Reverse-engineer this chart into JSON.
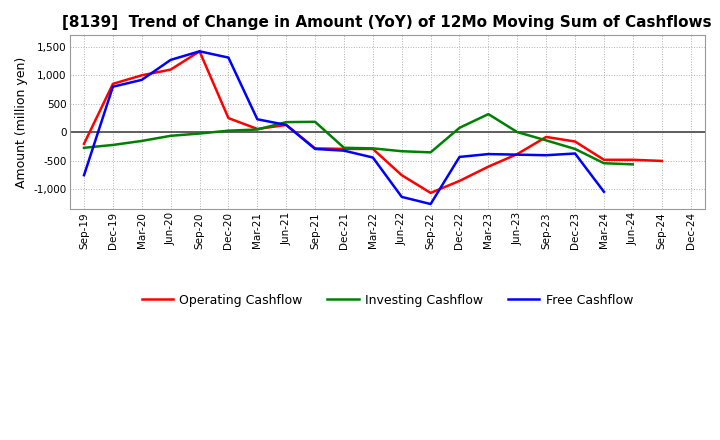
{
  "title": "[8139]  Trend of Change in Amount (YoY) of 12Mo Moving Sum of Cashflows",
  "ylabel": "Amount (million yen)",
  "x_labels": [
    "Sep-19",
    "Dec-19",
    "Mar-20",
    "Jun-20",
    "Sep-20",
    "Dec-20",
    "Mar-21",
    "Jun-21",
    "Sep-21",
    "Dec-21",
    "Mar-22",
    "Jun-22",
    "Sep-22",
    "Dec-22",
    "Mar-23",
    "Jun-23",
    "Sep-23",
    "Dec-23",
    "Mar-24",
    "Jun-24",
    "Sep-24",
    "Dec-24"
  ],
  "operating": [
    -200,
    850,
    1000,
    1100,
    1420,
    250,
    60,
    130,
    -280,
    -290,
    -290,
    -750,
    -1060,
    -850,
    -600,
    -380,
    -80,
    -160,
    -480,
    -480,
    -500,
    null
  ],
  "investing": [
    -270,
    -220,
    -150,
    -60,
    -20,
    30,
    50,
    180,
    185,
    -270,
    -280,
    -330,
    -350,
    80,
    320,
    5,
    -140,
    -290,
    -540,
    -560,
    null,
    null
  ],
  "free": [
    -750,
    800,
    920,
    1270,
    1420,
    1310,
    230,
    130,
    -290,
    -320,
    -440,
    -1130,
    -1255,
    -430,
    -380,
    -390,
    -400,
    -370,
    -1040,
    null,
    null,
    null
  ],
  "ylim": [
    -1350,
    1700
  ],
  "yticks": [
    -1000,
    -500,
    0,
    500,
    1000,
    1500
  ],
  "operating_color": "#ff0000",
  "investing_color": "#008000",
  "free_color": "#0000ff",
  "bg_color": "#ffffff",
  "plot_bg_color": "#ffffff",
  "grid_color": "#b0b0b0",
  "zero_line_color": "#444444",
  "title_fontsize": 11,
  "axis_label_fontsize": 9,
  "tick_fontsize": 7.5,
  "legend_fontsize": 9,
  "linewidth": 1.8
}
